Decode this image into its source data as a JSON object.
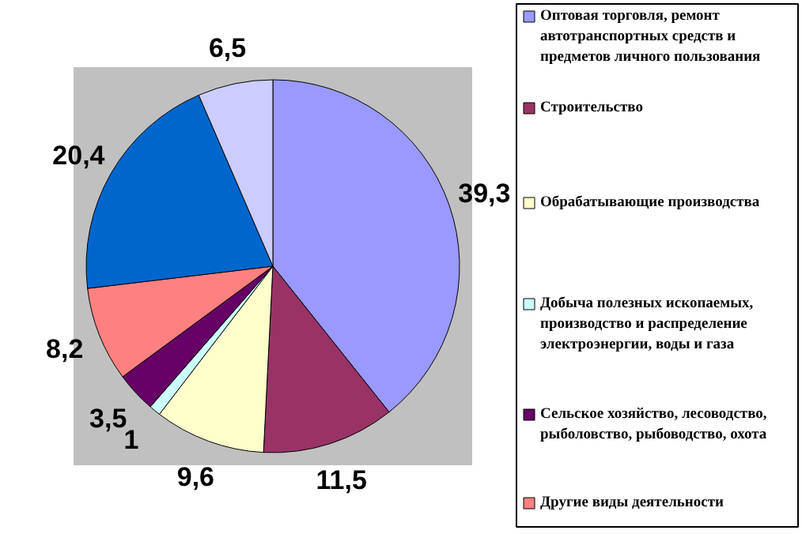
{
  "chart_data": {
    "type": "pie",
    "categories": [
      "Оптовая торговля, ремонт автотранспортных средств и предметов личного пользования",
      "Строительство",
      "Обрабатывающие производства",
      "Добыча полезных ископаемых, производство и распределение электроэнергии, воды и газа",
      "Сельское хозяйство, лесоводство, рыболовство, рыбоводство, охота",
      "Другие виды деятельности",
      null,
      null
    ],
    "values": [
      39.3,
      11.5,
      9.6,
      1,
      3.5,
      8.2,
      20.4,
      6.5
    ],
    "value_labels": [
      "39,3",
      "11,5",
      "9,6",
      "1",
      "3,5",
      "8,2",
      "20,4",
      "6,5"
    ],
    "colors": [
      "#9999ff",
      "#993366",
      "#ffffcc",
      "#ccffff",
      "#660066",
      "#ff8080",
      "#0066cc",
      "#ccccff"
    ],
    "legend": "right"
  }
}
